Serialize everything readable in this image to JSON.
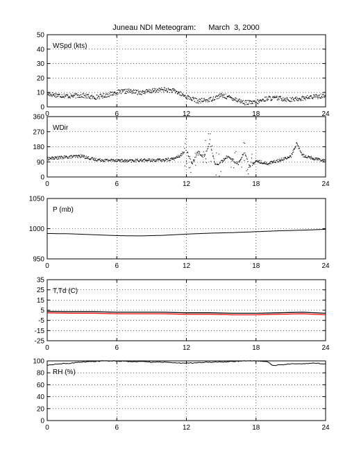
{
  "title": "Juneau NDI Meteogram:      March  3, 2000",
  "x_ticks": [
    0,
    6,
    12,
    18,
    24
  ],
  "colors": {
    "axis": "#000000",
    "data": "#000000",
    "dewpoint": "#ff0000",
    "grid": "#000000",
    "background": "#ffffff"
  },
  "chart_data": [
    {
      "type": "scatter",
      "label": "WSpd (kts)",
      "xlim": [
        0,
        24
      ],
      "ylim": [
        0,
        50
      ],
      "yticks": [
        0,
        10,
        20,
        30,
        40,
        50
      ],
      "grid": true,
      "x": [
        0,
        1,
        2,
        3,
        4,
        5,
        6,
        7,
        8,
        9,
        10,
        11,
        12,
        13,
        14,
        15,
        16,
        17,
        18,
        19,
        20,
        21,
        22,
        23,
        24
      ],
      "values": [
        9,
        8,
        7.5,
        8,
        6.5,
        8,
        10,
        11,
        10,
        11,
        12,
        11,
        7,
        4,
        5,
        8,
        6,
        3,
        3,
        6,
        6,
        5,
        6,
        7,
        8
      ]
    },
    {
      "type": "scatter",
      "label": "WDir",
      "xlim": [
        0,
        24
      ],
      "ylim": [
        0,
        360
      ],
      "yticks": [
        0,
        90,
        180,
        270,
        360
      ],
      "grid": true,
      "x": [
        0,
        1,
        2,
        3,
        4,
        5,
        6,
        7,
        8,
        9,
        10,
        11,
        11.5,
        12,
        12.5,
        13,
        13.5,
        14,
        14.5,
        15,
        15.5,
        16,
        16.5,
        17,
        17.5,
        18,
        19,
        20,
        21,
        21.5,
        22,
        23,
        24
      ],
      "values": [
        110,
        115,
        120,
        125,
        105,
        100,
        100,
        95,
        100,
        100,
        100,
        110,
        130,
        160,
        80,
        150,
        120,
        200,
        70,
        90,
        120,
        100,
        80,
        150,
        60,
        95,
        80,
        100,
        120,
        200,
        130,
        110,
        100
      ]
    },
    {
      "type": "line",
      "label": "P (mb)",
      "xlim": [
        0,
        24
      ],
      "ylim": [
        950,
        1050
      ],
      "yticks": [
        950,
        1000,
        1050
      ],
      "grid": true,
      "x": [
        0,
        2,
        4,
        6,
        8,
        10,
        12,
        14,
        16,
        18,
        20,
        22,
        24
      ],
      "values": [
        992,
        991.5,
        990,
        988.5,
        988,
        989,
        991,
        992.5,
        993.5,
        995,
        996.5,
        997.5,
        999
      ]
    },
    {
      "type": "line",
      "label": "T,Td (C)",
      "xlim": [
        0,
        24
      ],
      "ylim": [
        -25,
        35
      ],
      "yticks": [
        -25,
        -15,
        -5,
        5,
        15,
        25,
        35
      ],
      "grid": true,
      "series": [
        {
          "x": [
            0,
            2,
            4,
            6,
            8,
            10,
            12,
            14,
            16,
            18,
            20,
            22,
            24
          ],
          "values": [
            4,
            3.5,
            3.5,
            3,
            3,
            3,
            2.5,
            2.5,
            2,
            2,
            2.5,
            3,
            2
          ]
        },
        {
          "x": [
            0,
            2,
            4,
            6,
            8,
            10,
            12,
            14,
            16,
            18,
            20,
            22,
            24
          ],
          "values": [
            2.5,
            2,
            2,
            1.5,
            1.5,
            1.5,
            1,
            1,
            0.5,
            0.5,
            1,
            1.5,
            0.5
          ]
        }
      ]
    },
    {
      "type": "line",
      "label": "RH (%)",
      "xlim": [
        0,
        24
      ],
      "ylim": [
        0,
        100
      ],
      "yticks": [
        0,
        20,
        40,
        60,
        80,
        100
      ],
      "grid": true,
      "x": [
        0,
        1,
        2,
        3,
        4,
        5,
        6,
        7,
        8,
        9,
        10,
        11,
        12,
        13,
        14,
        15,
        16,
        17,
        18,
        19,
        19.5,
        20,
        21,
        22,
        23,
        24
      ],
      "values": [
        93,
        95,
        96,
        98,
        99,
        100,
        100,
        99,
        99,
        98,
        98,
        97,
        96,
        97,
        98,
        98,
        99,
        100,
        100,
        98,
        92,
        93,
        95,
        95,
        96,
        95
      ]
    }
  ]
}
